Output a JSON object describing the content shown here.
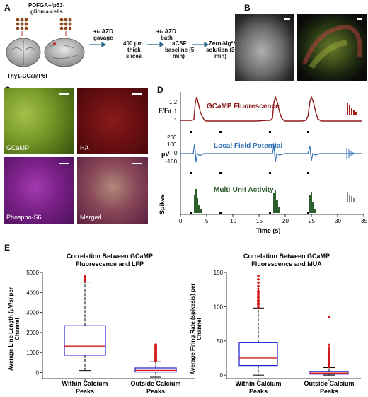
{
  "panels": {
    "a": "A",
    "b": "B",
    "c": "C",
    "d": "D",
    "e": "E"
  },
  "panel_a": {
    "cells_label_1": "PDFGA+/p53-",
    "cells_label_2": "glioma cells",
    "mouse_label": "Thy1-GCaMP6f",
    "step1_1": "+/- AZD",
    "step1_2": "gavage",
    "step2_1": "400 μm",
    "step2_2": "thick",
    "step2_3": "slices",
    "step3_1": "+/- AZD",
    "step3_2": "bath",
    "step4_1": "aCSF",
    "step4_2": "baseline (5",
    "step4_3": "min)",
    "step5_1": "Zero-Mg²⁺",
    "step5_2": "solution (30",
    "step5_3": "min)"
  },
  "panel_c": {
    "tiles": [
      "GCaMP",
      "HA",
      "Phospho-S6",
      "Merged"
    ]
  },
  "panel_d": {
    "ylabel_top": "F/F₀",
    "ylabel_mid": "μV",
    "ylabel_bot": "Spikes",
    "series_top": "GCaMP Fluorescence",
    "series_mid": "Local Field Potential",
    "series_bot": "Multi-Unit Activity",
    "xlabel": "Time (s)",
    "yticks_top": [
      "1.2",
      "1.1",
      "1"
    ],
    "yticks_mid": [
      "200",
      "100",
      "0",
      "-100"
    ],
    "xticks": [
      "0",
      "5",
      "10",
      "15",
      "20",
      "25",
      "30",
      "35"
    ],
    "colors": {
      "top": "#8b1a1a",
      "mid": "#2f6fb5",
      "bot": "#2e5e2e"
    }
  },
  "chart_data": [
    {
      "type": "box",
      "title": "Correlation Between GCaMP Fluorescence and LFP",
      "title_line1": "Correlation Between GCaMP",
      "title_line2": "Fluorescence and LFP",
      "ylabel": "Average Line Length (μV/s) per Channel",
      "ylabel_line1": "Average Line Length (μV/s) per",
      "ylabel_line2": "Channel",
      "ylim": [
        -300,
        5000
      ],
      "yticks": [
        0,
        1000,
        2000,
        3000,
        4000,
        5000
      ],
      "categories": [
        "Within Calcium Peaks",
        "Outside Calcium Peaks"
      ],
      "cat_line1": [
        "Within Calcium",
        "Outside Calcium"
      ],
      "cat_line2": [
        "Peaks",
        "Peaks"
      ],
      "boxes": [
        {
          "whisker_low": 100,
          "q1": 870,
          "median": 1320,
          "q3": 2340,
          "whisker_high": 4520,
          "outliers": [
            4580,
            4620,
            4660,
            4700,
            4740,
            4780,
            4820
          ]
        },
        {
          "whisker_low": -230,
          "q1": 30,
          "median": 110,
          "q3": 230,
          "whisker_high": 540,
          "outliers": [
            560,
            600,
            640,
            680,
            720,
            760,
            800,
            840,
            880,
            920,
            960,
            1000,
            1040,
            1080,
            1120,
            1160,
            1200,
            1240,
            1280,
            1320,
            1360,
            1400
          ]
        }
      ],
      "colors": {
        "box": "#1a1ad6",
        "median": "#d11a1a",
        "outlier": "#d11a1a",
        "whisker": "#000000"
      }
    },
    {
      "type": "box",
      "title": "Correlation Between GCaMP Fluorescence and MUA",
      "title_line1": "Correlation Between GCaMP",
      "title_line2": "Fluorescence and MUA",
      "ylabel": "Average Firing Rate (spikes/s) per Channel",
      "ylabel_line1": "Average Firing Rate (spikes/s) per",
      "ylabel_line2": "Channel",
      "ylim": [
        -5,
        150
      ],
      "yticks": [
        0,
        50,
        100,
        150
      ],
      "categories": [
        "Within Calcium Peaks",
        "Outside Calcium Peaks"
      ],
      "cat_line1": [
        "Within Calcium",
        "Outside Calcium"
      ],
      "cat_line2": [
        "Peaks",
        "Peaks"
      ],
      "boxes": [
        {
          "whisker_low": 0,
          "q1": 14,
          "median": 25,
          "q3": 48,
          "whisker_high": 98,
          "outliers": [
            99,
            101,
            103,
            105,
            107,
            109,
            111,
            113,
            115,
            117,
            119,
            121,
            123,
            126,
            130,
            135,
            140,
            145
          ]
        },
        {
          "whisker_low": 0,
          "q1": 1.5,
          "median": 3,
          "q3": 5.5,
          "whisker_high": 11,
          "outliers": [
            12,
            13,
            14,
            15,
            16,
            17,
            18,
            19,
            20,
            21,
            22,
            23,
            24,
            25,
            26,
            27,
            28,
            29,
            30,
            32,
            34,
            37,
            40,
            44,
            85
          ]
        }
      ],
      "colors": {
        "box": "#1a1ad6",
        "median": "#d11a1a",
        "outlier": "#d11a1a",
        "whisker": "#000000"
      }
    }
  ]
}
